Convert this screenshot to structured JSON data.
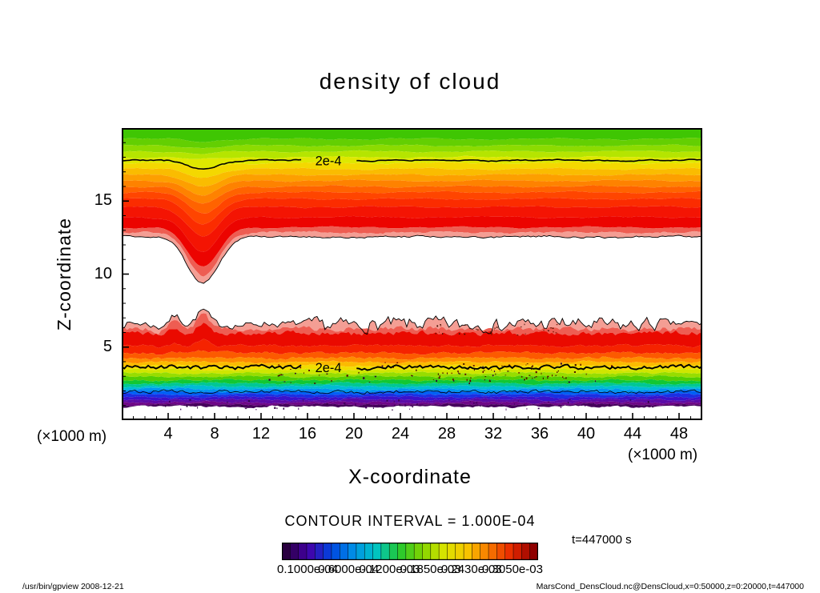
{
  "title": "density of cloud",
  "footer": {
    "left": "/usr/bin/gpview  2008-12-21",
    "right": "MarsCond_DensCloud.nc@DensCloud,x=0:50000,z=0:20000,t=447000"
  },
  "chart_data": {
    "type": "contour",
    "title": "density of cloud",
    "xlabel": "X-coordinate",
    "ylabel": "Z-coordinate",
    "x_unit": "(×1000 m)",
    "y_unit": "(×1000 m)",
    "xlim": [
      0,
      50
    ],
    "ylim": [
      0,
      20
    ],
    "x_ticks": [
      4,
      8,
      12,
      16,
      20,
      24,
      28,
      32,
      36,
      40,
      44,
      48
    ],
    "y_ticks": [
      5,
      10,
      15
    ],
    "contour_interval_label": "CONTOUR INTERVAL = 1.000E-04",
    "time_label": "t=447000 s",
    "contour_lines": [
      {
        "z": 17.78,
        "label": "2e-4",
        "label_x": 17.8,
        "gap": [
          15.6,
          20.1
        ],
        "width": 1.6,
        "dip": 0.55
      },
      {
        "z": 3.62,
        "label": "2e-4",
        "label_x": 17.8,
        "gap": [
          15.6,
          20.1
        ],
        "width": 1.9,
        "dip": 0.0
      }
    ],
    "thin_line_z": 1.95,
    "upper_cloud": {
      "z_top": 20,
      "bands": [
        {
          "z": 19.25,
          "color": "#3fc603"
        },
        {
          "z": 18.8,
          "color": "#63cf02"
        },
        {
          "z": 18.4,
          "color": "#8cdb01"
        },
        {
          "z": 18.0,
          "color": "#b5e500"
        },
        {
          "z": 17.6,
          "color": "#dfe800"
        },
        {
          "z": 17.2,
          "color": "#f4d800"
        },
        {
          "z": 16.8,
          "color": "#fabc00"
        },
        {
          "z": 16.4,
          "color": "#fd9f00"
        },
        {
          "z": 16.0,
          "color": "#fe8200"
        },
        {
          "z": 15.6,
          "color": "#ff6300"
        },
        {
          "z": 15.15,
          "color": "#ff4500"
        },
        {
          "z": 14.6,
          "color": "#fb2c00"
        },
        {
          "z": 13.9,
          "color": "#f41403"
        },
        {
          "z": 13.2,
          "color": "#ec0400"
        },
        {
          "z": 12.85,
          "color": "#ee5d52"
        },
        {
          "z": 12.55,
          "color": "#f49e94"
        }
      ]
    },
    "lower_cloud": {
      "z_top": 6.55,
      "bands": [
        {
          "z": 6.25,
          "color": "#f49e94"
        },
        {
          "z": 5.95,
          "color": "#ee5d52"
        },
        {
          "z": 5.1,
          "color": "#ea0a00"
        },
        {
          "z": 4.6,
          "color": "#f52300"
        },
        {
          "z": 4.25,
          "color": "#fc5a00"
        },
        {
          "z": 3.98,
          "color": "#fe8c00"
        },
        {
          "z": 3.72,
          "color": "#fbbb00"
        },
        {
          "z": 3.46,
          "color": "#f2dc00"
        },
        {
          "z": 3.22,
          "color": "#cfe600"
        },
        {
          "z": 2.98,
          "color": "#97dd00"
        },
        {
          "z": 2.74,
          "color": "#55cd02"
        },
        {
          "z": 2.52,
          "color": "#12c733"
        },
        {
          "z": 2.32,
          "color": "#00c795"
        },
        {
          "z": 2.13,
          "color": "#00bcd4"
        },
        {
          "z": 1.95,
          "color": "#0095ef"
        },
        {
          "z": 1.77,
          "color": "#0060f5"
        },
        {
          "z": 1.58,
          "color": "#1b2fe3"
        },
        {
          "z": 1.4,
          "color": "#3c12c9"
        },
        {
          "z": 1.22,
          "color": "#5b0aa6"
        },
        {
          "z": 1.07,
          "color": "#6e0787"
        },
        {
          "z": 0.93,
          "color": "#45015c"
        }
      ]
    },
    "colorbar": {
      "segments": 31,
      "labels": [
        "0.1000e-04",
        "0.6000e-04",
        "0.1200e-03",
        "0.1850e-03",
        "0.2430e-03",
        "0.3050e-03"
      ],
      "palette": [
        "#2a0040",
        "#4400a8",
        "#0044e0",
        "#0090e8",
        "#00c4c4",
        "#22c832",
        "#7ed400",
        "#d8e400",
        "#f8c800",
        "#f87800",
        "#e82800",
        "#8f0000"
      ]
    },
    "frame_color": "#000000"
  }
}
